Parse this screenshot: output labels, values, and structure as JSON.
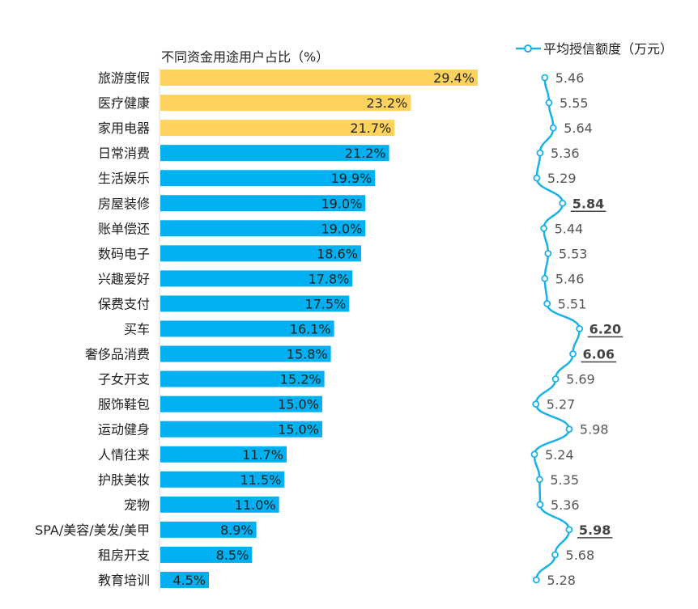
{
  "chart_data": {
    "type": "bar+line",
    "bar_title": "不同资金用途用户占比（%）",
    "line_legend": "平均授信额度（万元）",
    "categories": [
      "旅游度假",
      "医疗健康",
      "家用电器",
      "日常消费",
      "生活娱乐",
      "房屋装修",
      "账单偿还",
      "数码电子",
      "兴趣爱好",
      "保费支付",
      "买车",
      "奢侈品消费",
      "子女开支",
      "服饰鞋包",
      "运动健身",
      "人情往来",
      "护肤美妆",
      "宠物",
      "SPA/美容/美发/美甲",
      "租房开支",
      "教育培训"
    ],
    "series": [
      {
        "name": "不同资金用途用户占比（%）",
        "type": "bar",
        "values": [
          29.4,
          23.2,
          21.7,
          21.2,
          19.9,
          19.0,
          19.0,
          18.6,
          17.8,
          17.5,
          16.1,
          15.8,
          15.2,
          15.0,
          15.0,
          11.7,
          11.5,
          11.0,
          8.9,
          8.5,
          4.5
        ],
        "value_labels": [
          "29.4%",
          "23.2%",
          "21.7%",
          "21.2%",
          "19.9%",
          "19.0%",
          "19.0%",
          "18.6%",
          "17.8%",
          "17.5%",
          "16.1%",
          "15.8%",
          "15.2%",
          "15.0%",
          "15.0%",
          "11.7%",
          "11.5%",
          "11.0%",
          "8.9%",
          "8.5%",
          "4.5%"
        ]
      },
      {
        "name": "平均授信额度（万元）",
        "type": "line",
        "values": [
          5.46,
          5.55,
          5.64,
          5.36,
          5.29,
          5.84,
          5.44,
          5.53,
          5.46,
          5.51,
          6.2,
          6.06,
          5.69,
          5.27,
          5.98,
          5.24,
          5.35,
          5.36,
          5.98,
          5.68,
          5.28
        ],
        "value_labels": [
          "5.46",
          "5.55",
          "5.64",
          "5.36",
          "5.29",
          "5.84",
          "5.44",
          "5.53",
          "5.46",
          "5.51",
          "6.20",
          "6.06",
          "5.69",
          "5.27",
          "5.98",
          "5.24",
          "5.35",
          "5.36",
          "5.98",
          "5.68",
          "5.28"
        ]
      }
    ],
    "highlighted_bars": [
      0,
      1,
      2
    ],
    "highlighted_line_labels": [
      5,
      10,
      11,
      18
    ],
    "colors": {
      "bar_highlight": "#FDD35E",
      "bar": "#00B0F0",
      "line": "#1AB0E8"
    },
    "orientation": "horizontal",
    "xlim": [
      0,
      30
    ],
    "grid": false,
    "legend_position": "top-right"
  }
}
